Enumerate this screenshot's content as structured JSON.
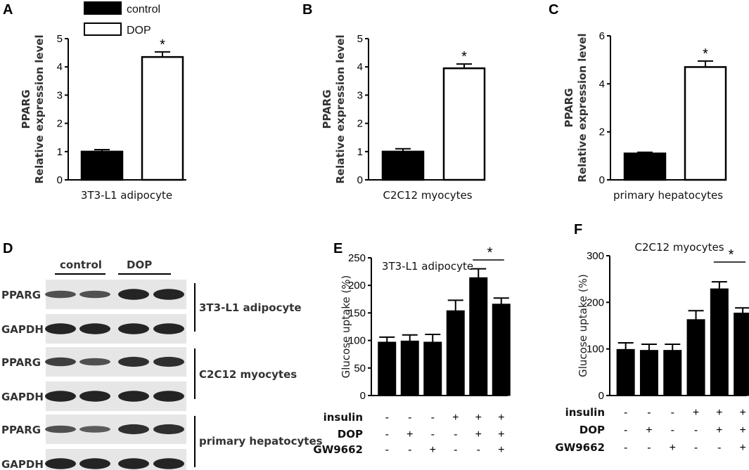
{
  "panel_labels": [
    "A",
    "B",
    "C",
    "D",
    "E",
    "F"
  ],
  "legend": {
    "items": [
      {
        "label": "control",
        "fill": "#000000"
      },
      {
        "label": "DOP",
        "fill": "#ffffff"
      }
    ]
  },
  "colors": {
    "filled_bar": "#000000",
    "open_bar": "#ffffff"
  },
  "chart_data": [
    {
      "id": "A",
      "type": "bar",
      "categories": [
        "control",
        "DOP"
      ],
      "values": [
        1.0,
        4.35
      ],
      "errors": [
        0.07,
        0.18
      ],
      "ylabel_line1": "PPARG",
      "ylabel_line2": "Relative expression level",
      "xlabel": "3T3-L1 adipocyte",
      "ylim": [
        0,
        5
      ],
      "yticks": [
        0,
        1,
        2,
        3,
        4,
        5
      ],
      "significance": "*"
    },
    {
      "id": "B",
      "type": "bar",
      "categories": [
        "control",
        "DOP"
      ],
      "values": [
        1.0,
        3.95
      ],
      "errors": [
        0.1,
        0.15
      ],
      "ylabel_line1": "PPARG",
      "ylabel_line2": "Relative expression level",
      "xlabel": "C2C12 myocytes",
      "ylim": [
        0,
        5
      ],
      "yticks": [
        0,
        1,
        2,
        3,
        4,
        5
      ],
      "significance": "*"
    },
    {
      "id": "C",
      "type": "bar",
      "categories": [
        "control",
        "DOP"
      ],
      "values": [
        1.1,
        4.7
      ],
      "errors": [
        0.05,
        0.25
      ],
      "ylabel_line1": "PPARG",
      "ylabel_line2": "Relative expression level",
      "xlabel": "primary hepatocytes",
      "ylim": [
        0,
        6
      ],
      "yticks": [
        0,
        2,
        4,
        6
      ],
      "significance": "*"
    },
    {
      "id": "E",
      "type": "bar",
      "title": "3T3-L1 adipocyte",
      "ylabel": "Glucose uptake (%)",
      "values": [
        97,
        99,
        97,
        154,
        214,
        166
      ],
      "errors": [
        9,
        11,
        14,
        19,
        16,
        11
      ],
      "ylim": [
        0,
        250
      ],
      "yticks": [
        0,
        50,
        100,
        150,
        200,
        250
      ],
      "treatments": [
        {
          "label": "insulin",
          "signs": [
            "-",
            "-",
            "-",
            "+",
            "+",
            "+"
          ]
        },
        {
          "label": "DOP",
          "signs": [
            "-",
            "+",
            "-",
            "-",
            "+",
            "+"
          ]
        },
        {
          "label": "GW9662",
          "signs": [
            "-",
            "-",
            "+",
            "-",
            "-",
            "+"
          ]
        }
      ],
      "significance": "*"
    },
    {
      "id": "F",
      "type": "bar",
      "title": "C2C12 myocytes",
      "ylabel": "Glucose uptake (%)",
      "values": [
        99,
        97,
        97,
        163,
        229,
        177
      ],
      "errors": [
        14,
        13,
        13,
        19,
        15,
        11
      ],
      "ylim": [
        0,
        300
      ],
      "yticks": [
        0,
        100,
        200,
        300
      ],
      "treatments": [
        {
          "label": "insulin",
          "signs": [
            "-",
            "-",
            "-",
            "+",
            "+",
            "+"
          ]
        },
        {
          "label": "DOP",
          "signs": [
            "-",
            "+",
            "-",
            "-",
            "+",
            "+"
          ]
        },
        {
          "label": "GW9662",
          "signs": [
            "-",
            "-",
            "+",
            "-",
            "-",
            "+"
          ]
        }
      ],
      "significance": "*"
    }
  ],
  "western": {
    "groups": [
      "control",
      "DOP"
    ],
    "rows": [
      {
        "label": "PPARG",
        "intensity": [
          0.55,
          0.55,
          0.95,
          0.95
        ]
      },
      {
        "label": "GAPDH",
        "intensity": [
          0.95,
          0.95,
          0.95,
          0.95
        ]
      },
      {
        "label": "PPARG",
        "intensity": [
          0.7,
          0.55,
          0.85,
          0.85
        ]
      },
      {
        "label": "GAPDH",
        "intensity": [
          0.95,
          0.95,
          0.95,
          0.95
        ]
      },
      {
        "label": "PPARG",
        "intensity": [
          0.55,
          0.45,
          0.85,
          0.85
        ]
      },
      {
        "label": "GAPDH",
        "intensity": [
          0.95,
          0.95,
          0.95,
          0.95
        ]
      }
    ],
    "cell_types": [
      "3T3-L1 adipocyte",
      "C2C12 myocytes",
      "primary hepatocytes"
    ]
  }
}
